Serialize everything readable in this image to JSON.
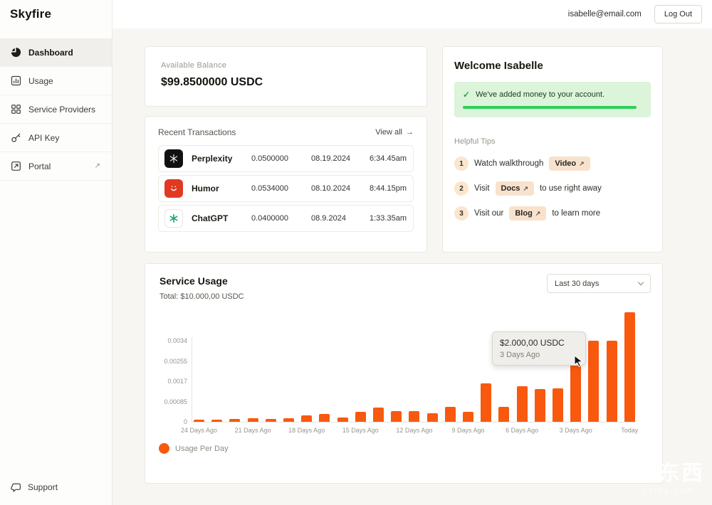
{
  "brand": "Skyfire",
  "topbar": {
    "email": "isabelle@email.com",
    "logout_label": "Log Out"
  },
  "icons": {
    "external_link": "↗",
    "check": "✓",
    "arrow_right": "→"
  },
  "sidebar": {
    "items": [
      {
        "label": "Dashboard",
        "icon": "dashboard-icon",
        "active": true
      },
      {
        "label": "Usage",
        "icon": "usage-chart-icon",
        "active": false
      },
      {
        "label": "Service Providers",
        "icon": "grid-icon",
        "active": false
      },
      {
        "label": "API Key",
        "icon": "key-icon",
        "active": false
      },
      {
        "label": "Portal",
        "icon": "portal-icon",
        "active": false,
        "external": true
      }
    ],
    "support_label": "Support"
  },
  "balance": {
    "label": "Available Balance",
    "value": "$99.8500000 USDC"
  },
  "transactions": {
    "title": "Recent Transactions",
    "view_all_label": "View all",
    "rows": [
      {
        "icon": "perplexity-icon",
        "name": "Perplexity",
        "amount": "0.0500000",
        "date": "08.19.2024",
        "time": "6:34.45am"
      },
      {
        "icon": "humor-icon",
        "name": "Humor",
        "amount": "0.0534000",
        "date": "08.10.2024",
        "time": "8:44.15pm"
      },
      {
        "icon": "chatgpt-icon",
        "name": "ChatGPT",
        "amount": "0.0400000",
        "date": "08.9.2024",
        "time": "1:33.35am"
      }
    ]
  },
  "welcome": {
    "title": "Welcome Isabelle",
    "banner_text": "We've added money to your account.",
    "tips_title": "Helpful Tips",
    "tips": [
      {
        "num": "1",
        "pre": "Watch walkthrough",
        "chip": "Video",
        "post": ""
      },
      {
        "num": "2",
        "pre": "Visit",
        "chip": "Docs",
        "post": "to use right away"
      },
      {
        "num": "3",
        "pre": "Visit our",
        "chip": "Blog",
        "post": "to learn more"
      }
    ]
  },
  "usage": {
    "title": "Service Usage",
    "total": "Total: $10.000,00 USDC",
    "range_selected": "Last 30 days",
    "legend": "Usage Per Day"
  },
  "chart_data": {
    "type": "bar",
    "title": "Service Usage",
    "total_label": "Total: $10.000,00 USDC",
    "series_name": "Usage Per Day",
    "x_tick_labels": [
      "24 Days Ago",
      "21 Days Ago",
      "18 Days Ago",
      "15 Days Ago",
      "12 Days Ago",
      "9 Days Ago",
      "6 Days Ago",
      "3 Days Ago",
      "Today"
    ],
    "x_tick_indices": [
      0,
      3,
      6,
      9,
      12,
      15,
      18,
      21,
      24
    ],
    "values": [
      9e-05,
      9e-05,
      0.00012,
      0.00015,
      0.00012,
      0.00015,
      0.00027,
      0.00033,
      0.00018,
      0.00042,
      0.0006,
      0.00045,
      0.00045,
      0.00036,
      0.00063,
      0.00042,
      0.0016,
      0.00063,
      0.0015,
      0.00137,
      0.0014,
      0.003,
      0.0034,
      0.0034,
      0.0046
    ],
    "y_tick_labels": [
      "0",
      "0.00085",
      "0.0017",
      "0.00255",
      "0.0034"
    ],
    "y_tick_values": [
      0,
      0.00085,
      0.0017,
      0.00255,
      0.0034
    ],
    "ylim": [
      0,
      0.0046
    ],
    "grid": false,
    "legend_position": "bottom-left",
    "bar_color": "#f8590f",
    "highlight_index": 21,
    "tooltip": {
      "value": "$2.000,00 USDC",
      "label": "3 Days Ago"
    }
  },
  "watermark": {
    "text": "智东西",
    "domain": "zhidx.com"
  },
  "colors": {
    "accent_orange": "#f8590f",
    "success_green": "#2cd05a",
    "banner_green_bg": "#dcf4da"
  }
}
